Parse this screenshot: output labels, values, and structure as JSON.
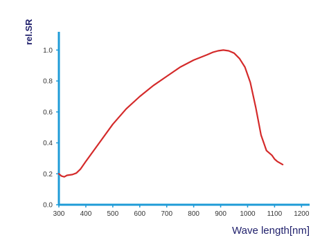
{
  "chart_data": {
    "type": "line",
    "title": "",
    "xlabel": "Wave length[nm]",
    "ylabel": "rel.SR",
    "xlim": [
      300,
      1230
    ],
    "ylim": [
      0,
      1.1
    ],
    "x_ticks": [
      "300",
      "400",
      "500",
      "600",
      "700",
      "800",
      "900",
      "1000",
      "1100",
      "1200"
    ],
    "y_ticks": [
      "0.0",
      "0.2",
      "0.4",
      "0.6",
      "0.8",
      "1.0"
    ],
    "grid": false,
    "legend": "none",
    "series": [
      {
        "color": "#d42a2a",
        "x": [
          300,
          310,
          320,
          330,
          350,
          365,
          380,
          400,
          450,
          500,
          550,
          600,
          650,
          700,
          750,
          800,
          850,
          870,
          890,
          910,
          930,
          950,
          970,
          990,
          1010,
          1030,
          1050,
          1070,
          1090,
          1100,
          1110,
          1130
        ],
        "y": [
          0.2,
          0.185,
          0.18,
          0.19,
          0.195,
          0.205,
          0.23,
          0.28,
          0.4,
          0.52,
          0.62,
          0.7,
          0.77,
          0.83,
          0.89,
          0.935,
          0.97,
          0.985,
          0.995,
          1.0,
          0.995,
          0.98,
          0.945,
          0.89,
          0.79,
          0.63,
          0.45,
          0.35,
          0.32,
          0.295,
          0.28,
          0.26
        ]
      }
    ]
  },
  "colors": {
    "axis": "#1e9bd7",
    "line": "#d42a2a",
    "label": "#1f1f6b"
  }
}
